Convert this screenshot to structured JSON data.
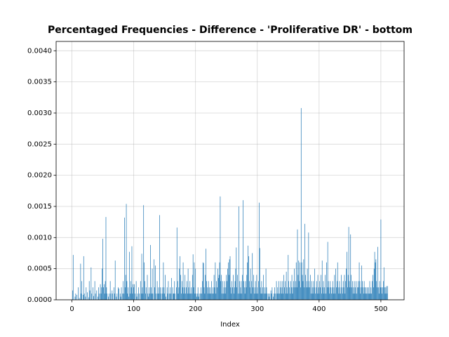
{
  "chart_data": {
    "type": "bar",
    "title": "Percentaged Frequencies - Difference - 'Proliferative DR' - bottom",
    "xlabel": "Index",
    "color": "#1f77b4",
    "grid": true,
    "xlim": [
      -25.6,
      537.6
    ],
    "ylim": [
      0,
      0.00415
    ],
    "xticks": [
      0,
      100,
      200,
      300,
      400,
      500
    ],
    "yticks": [
      {
        "value": 0,
        "label": "0.0000"
      },
      {
        "value": 0.0005,
        "label": "0.0005"
      },
      {
        "value": 0.001,
        "label": "0.0010"
      },
      {
        "value": 0.0015,
        "label": "0.0015"
      },
      {
        "value": 0.002,
        "label": "0.0020"
      },
      {
        "value": 0.0025,
        "label": "0.0025"
      },
      {
        "value": 0.003,
        "label": "0.0030"
      },
      {
        "value": 0.0035,
        "label": "0.0035"
      },
      {
        "value": 0.004,
        "label": "0.0040"
      }
    ],
    "x": [
      0,
      1,
      2,
      3,
      4,
      5,
      6,
      7,
      8,
      9,
      10,
      11,
      12,
      13,
      14,
      15,
      16,
      17,
      18,
      19,
      20,
      21,
      22,
      23,
      24,
      25,
      26,
      27,
      28,
      29,
      30,
      31,
      32,
      33,
      34,
      35,
      36,
      37,
      38,
      39,
      40,
      41,
      42,
      43,
      44,
      45,
      46,
      47,
      48,
      49,
      50,
      51,
      52,
      53,
      54,
      55,
      56,
      57,
      58,
      59,
      60,
      61,
      62,
      63,
      64,
      65,
      66,
      67,
      68,
      69,
      70,
      71,
      72,
      73,
      74,
      75,
      76,
      77,
      78,
      79,
      80,
      81,
      82,
      83,
      84,
      85,
      86,
      87,
      88,
      89,
      90,
      91,
      92,
      93,
      94,
      95,
      96,
      97,
      98,
      99,
      100,
      101,
      102,
      103,
      104,
      105,
      106,
      107,
      108,
      109,
      110,
      111,
      112,
      113,
      114,
      115,
      116,
      117,
      118,
      119,
      120,
      121,
      122,
      123,
      124,
      125,
      126,
      127,
      128,
      129,
      130,
      131,
      132,
      133,
      134,
      135,
      136,
      137,
      138,
      139,
      140,
      141,
      142,
      143,
      144,
      145,
      146,
      147,
      148,
      149,
      150,
      151,
      152,
      153,
      154,
      155,
      156,
      157,
      158,
      159,
      160,
      161,
      162,
      163,
      164,
      165,
      166,
      167,
      168,
      169,
      170,
      171,
      172,
      173,
      174,
      175,
      176,
      177,
      178,
      179,
      180,
      181,
      182,
      183,
      184,
      185,
      186,
      187,
      188,
      189,
      190,
      191,
      192,
      193,
      194,
      195,
      196,
      197,
      198,
      199,
      200,
      201,
      202,
      203,
      204,
      205,
      206,
      207,
      208,
      209,
      210,
      211,
      212,
      213,
      214,
      215,
      216,
      217,
      218,
      219,
      220,
      221,
      222,
      223,
      224,
      225,
      226,
      227,
      228,
      229,
      230,
      231,
      232,
      233,
      234,
      235,
      236,
      237,
      238,
      239,
      240,
      241,
      242,
      243,
      244,
      245,
      246,
      247,
      248,
      249,
      250,
      251,
      252,
      253,
      254,
      255,
      256,
      257,
      258,
      259,
      260,
      261,
      262,
      263,
      264,
      265,
      266,
      267,
      268,
      269,
      270,
      271,
      272,
      273,
      274,
      275,
      276,
      277,
      278,
      279,
      280,
      281,
      282,
      283,
      284,
      285,
      286,
      287,
      288,
      289,
      290,
      291,
      292,
      293,
      294,
      295,
      296,
      297,
      298,
      299,
      300,
      301,
      302,
      303,
      304,
      305,
      306,
      307,
      308,
      309,
      310,
      311,
      312,
      313,
      314,
      315,
      316,
      317,
      318,
      319,
      320,
      321,
      322,
      323,
      324,
      325,
      326,
      327,
      328,
      329,
      330,
      331,
      332,
      333,
      334,
      335,
      336,
      337,
      338,
      339,
      340,
      341,
      342,
      343,
      344,
      345,
      346,
      347,
      348,
      349,
      350,
      351,
      352,
      353,
      354,
      355,
      356,
      357,
      358,
      359,
      360,
      361,
      362,
      363,
      364,
      365,
      366,
      367,
      368,
      369,
      370,
      371,
      372,
      373,
      374,
      375,
      376,
      377,
      378,
      379,
      380,
      381,
      382,
      383,
      384,
      385,
      386,
      387,
      388,
      389,
      390,
      391,
      392,
      393,
      394,
      395,
      396,
      397,
      398,
      399,
      400,
      401,
      402,
      403,
      404,
      405,
      406,
      407,
      408,
      409,
      410,
      411,
      412,
      413,
      414,
      415,
      416,
      417,
      418,
      419,
      420,
      421,
      422,
      423,
      424,
      425,
      426,
      427,
      428,
      429,
      430,
      431,
      432,
      433,
      434,
      435,
      436,
      437,
      438,
      439,
      440,
      441,
      442,
      443,
      444,
      445,
      446,
      447,
      448,
      449,
      450,
      451,
      452,
      453,
      454,
      455,
      456,
      457,
      458,
      459,
      460,
      461,
      462,
      463,
      464,
      465,
      466,
      467,
      468,
      469,
      470,
      471,
      472,
      473,
      474,
      475,
      476,
      477,
      478,
      479,
      480,
      481,
      482,
      483,
      484,
      485,
      486,
      487,
      488,
      489,
      490,
      491,
      492,
      493,
      494,
      495,
      496,
      497,
      498,
      499,
      500,
      501,
      502,
      503,
      504,
      505,
      506,
      507,
      508,
      509,
      510,
      511
    ],
    "values": [
      0,
      0.00015,
      0.00072,
      0,
      0,
      5e-05,
      0.0001,
      0,
      8e-05,
      0,
      0.0002,
      0,
      3e-05,
      0,
      0.00058,
      0.0001,
      0.0003,
      0,
      8e-05,
      0.0007,
      0.0001,
      0,
      5e-05,
      0.0002,
      0,
      0.00012,
      0,
      4e-05,
      0.0003,
      0.00015,
      0,
      0.00052,
      0.0001,
      0,
      0.0002,
      6e-05,
      0,
      0.0003,
      0.0001,
      0,
      0.00015,
      0,
      5e-05,
      0.0002,
      0.0001,
      0,
      0.00025,
      0.0001,
      0.0002,
      0.0005,
      0.00098,
      0.0002,
      0.00025,
      0.0001,
      0.0003,
      0.00133,
      0.0002,
      0.0001,
      0,
      5e-05,
      0.0001,
      0,
      0.0003,
      0.0001,
      0,
      0.00015,
      0.0001,
      0,
      0.0002,
      0.0001,
      0.00063,
      0,
      5e-05,
      0.0001,
      0,
      0.0002,
      0.00018,
      0,
      0.0001,
      5e-05,
      0.0002,
      0,
      0.0001,
      0.0003,
      0.0001,
      0.00132,
      0.0002,
      0.0004,
      0.00154,
      0.0003,
      0.0001,
      0.0002,
      5e-05,
      0.00077,
      0.0001,
      0.0003,
      0.0002,
      0.00086,
      0.0001,
      0.00025,
      0.0002,
      0.00025,
      0.0001,
      0,
      0.0003,
      5e-05,
      0.0001,
      0,
      0.0002,
      0.0001,
      0,
      0.0003,
      0.0001,
      0.00074,
      0.0002,
      0.0001,
      0.00152,
      0.0006,
      0.0003,
      0.0001,
      0.0002,
      0,
      0.0004,
      0.0001,
      5e-05,
      0.0002,
      0.0001,
      0.00088,
      0.0002,
      0.0001,
      0.0005,
      0.0001,
      0,
      0.00065,
      0.0002,
      0.00055,
      0.0001,
      0,
      0.0003,
      0.0001,
      0.0002,
      0.0001,
      0.00136,
      0.0002,
      0.0001,
      0,
      0.0002,
      0.0001,
      0.0006,
      0.0002,
      0.0001,
      0.0004,
      5e-05,
      0,
      0.0002,
      0.0001,
      0.0003,
      0,
      0.0001,
      0.0002,
      0.0001,
      0.00035,
      0,
      0.0002,
      0.0001,
      0.0001,
      0.0003,
      0.0001,
      0,
      0.0002,
      0.00116,
      0.0003,
      0.0001,
      0.0002,
      0.0005,
      0.0007,
      0.0004,
      0.0001,
      0.0003,
      0.0002,
      0.0006,
      0.0001,
      0.0002,
      0.0004,
      0.0001,
      0.0002,
      0.0003,
      0.0001,
      0.0005,
      0.0002,
      0.0001,
      0.0003,
      0.0001,
      0.0002,
      0.0001,
      0.0004,
      0.00073,
      0.0002,
      0.0006,
      0.0001,
      0.0005,
      0.0001,
      5e-05,
      0.0001,
      0.0002,
      5e-05,
      0.0001,
      0,
      0.0001,
      0.0002,
      0.0001,
      0.0003,
      0.0006,
      0.00059,
      0.0002,
      0.0001,
      0.0004,
      0.00082,
      0.0003,
      0.0002,
      0.0001,
      0.0003,
      0.0002,
      0.0001,
      0.0002,
      0.0001,
      0.0003,
      0.0001,
      0.0002,
      0.0001,
      0.0004,
      0.0002,
      0.0006,
      0.0001,
      0.0003,
      0.0002,
      0.0005,
      0.00035,
      0.0004,
      0.0006,
      0.00166,
      0.0003,
      0.0004,
      0.0001,
      0.0003,
      0.0001,
      0.0002,
      0.0003,
      0.0001,
      0.0002,
      0.0004,
      0.0003,
      0.0005,
      0.0006,
      0.0004,
      0.00065,
      0.0007,
      0.0002,
      0.0001,
      0.0003,
      0.0002,
      0.0004,
      0.0001,
      0.0002,
      0.0003,
      0.0005,
      0.00084,
      0.0002,
      0.0004,
      0.0001,
      0.0015,
      0.0003,
      0.0001,
      0.0002,
      0.0003,
      0.0001,
      0.0004,
      0.0016,
      0.0003,
      0.0002,
      0.0001,
      0.0003,
      0.0002,
      0.0004,
      0.0006,
      0.00087,
      0.0007,
      0.0003,
      0.0002,
      0.0005,
      0.0001,
      0.0003,
      0.00075,
      0.0002,
      0.0004,
      0.0001,
      0.0002,
      0.0003,
      0.0001,
      0.0004,
      0.0002,
      0.0001,
      0.0003,
      0.00156,
      0.00083,
      0.0002,
      0.0001,
      0.0003,
      0.0001,
      0.0002,
      0.0004,
      0.0001,
      0.0002,
      0.0001,
      0.0005,
      0.0002,
      0.0001,
      0,
      0.0001,
      5e-05,
      0.0001,
      0,
      0.00015,
      0.0001,
      0.0002,
      0,
      5e-05,
      0.0001,
      0.0002,
      0.0001,
      0,
      0.0003,
      0.0001,
      0.0002,
      0.0001,
      0.0003,
      0.0001,
      0.0002,
      0.0003,
      0.0001,
      0.0002,
      0.0003,
      0.0001,
      0.0004,
      0.0002,
      0.0003,
      0.0001,
      0.00045,
      0.0002,
      0.0001,
      0.00072,
      0.0003,
      0.0002,
      0.0001,
      0.0003,
      0.0002,
      0.0004,
      0.0001,
      0.0002,
      0.0003,
      0.0005,
      0.0002,
      0.0003,
      0.0006,
      0.0002,
      0.00113,
      0.0004,
      0.00063,
      0.0003,
      0.0006,
      0.0002,
      0.00308,
      0.0006,
      0.0004,
      0.0003,
      0.00065,
      0.0002,
      0.00122,
      0.0004,
      0.0002,
      0.0003,
      0.0005,
      0.0002,
      0.00108,
      0.0003,
      0.0002,
      0.0004,
      0.0001,
      0.0003,
      0.0002,
      0.0001,
      0.0003,
      0.0002,
      0.0005,
      0.0001,
      0.0002,
      0.0003,
      0.0001,
      0.0004,
      0.0002,
      0.0001,
      0.0003,
      0.0002,
      0.0004,
      0.0001,
      0.00063,
      0.0002,
      0.0003,
      0.0001,
      0.0002,
      0.0004,
      0.0001,
      0.0006,
      0.0002,
      0.00093,
      0.0003,
      0.0002,
      0.0001,
      0.0003,
      0.0002,
      0.0001,
      0.0002,
      0.0003,
      0.0001,
      0.0002,
      0.0004,
      0.0001,
      0.0005,
      0.0002,
      0.0003,
      0.0006,
      0.0002,
      0.0001,
      0.0003,
      0.0002,
      0.0001,
      0.0004,
      0.0002,
      0.0001,
      0.0003,
      0.0002,
      0.0004,
      0.0001,
      0.0003,
      0.0005,
      0.00077,
      0.0002,
      0.0004,
      0.00117,
      0.0003,
      0.0002,
      0.00105,
      0.0004,
      0.0002,
      0.0003,
      0.0001,
      0.0002,
      0.0003,
      0.0001,
      0.0002,
      0.0003,
      0.0001,
      0.0002,
      0.0003,
      0.0002,
      0.0006,
      0.0003,
      0.0001,
      0.0002,
      0.00055,
      0.0003,
      0.0002,
      0.0001,
      0.0003,
      0.0002,
      0.0001,
      0.0002,
      0.0001,
      0.0002,
      0.0001,
      0.0002,
      0.0001,
      0.0003,
      0.0001,
      0.0002,
      0.0001,
      0.0003,
      0.0004,
      0.0002,
      0.0005,
      0.00077,
      0.0006,
      0.00065,
      0.0003,
      0.0002,
      0.00085,
      0.0002,
      0.0001,
      0.0003,
      0.0002,
      0.00129,
      0.0002,
      0.0001,
      0.0002,
      0.0003,
      0.00052,
      0.0002,
      0.0001,
      0.0002,
      0.00022,
      0.0001,
      0.00022
    ]
  }
}
